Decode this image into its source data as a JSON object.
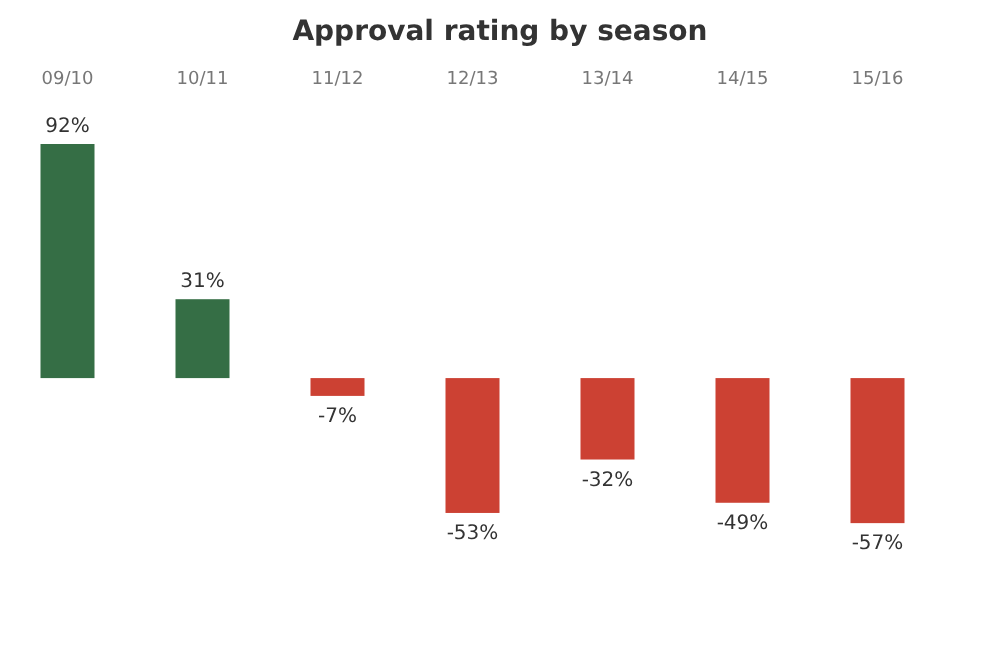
{
  "chart_data": {
    "type": "bar",
    "title": "Approval rating by season",
    "categories": [
      "09/10",
      "10/11",
      "11/12",
      "12/13",
      "13/14",
      "14/15",
      "15/16"
    ],
    "values": [
      92,
      31,
      -7,
      -53,
      -32,
      -49,
      -57
    ],
    "colors": [
      "#356e45",
      "#356e45",
      "#cc4133",
      "#cc4133",
      "#cc4133",
      "#cc4133",
      "#cc4133"
    ],
    "value_labels": [
      "92%",
      "31%",
      "-7%",
      "-53%",
      "-32%",
      "-49%",
      "-57%"
    ]
  }
}
